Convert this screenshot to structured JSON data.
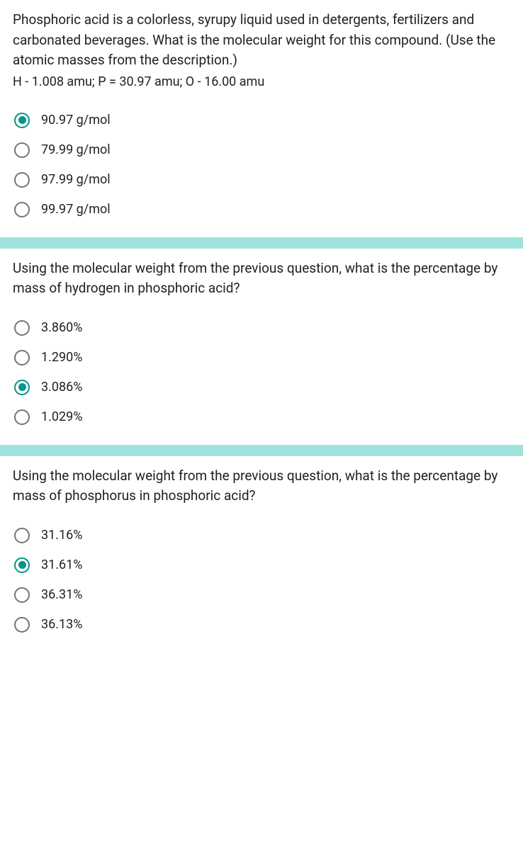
{
  "accent_color": "#009688",
  "radio_unselected_color": "#757575",
  "divider_color": "#a1e4dd",
  "text_color": "#212121",
  "questions": [
    {
      "prompt": "Phosphoric acid is a colorless, syrupy liquid used in detergents, fertilizers and carbonated beverages. What is the molecular weight for this compound. (Use the atomic masses from the description.)",
      "sub": "H - 1.008 amu; P = 30.97 amu; O - 16.00 amu",
      "selected": 0,
      "options": [
        "90.97 g/mol",
        "79.99 g/mol",
        "97.99 g/mol",
        "99.97 g/mol"
      ]
    },
    {
      "prompt": "Using the molecular weight from the previous question, what is the percentage by mass of hydrogen in phosphoric acid?",
      "sub": "",
      "selected": 2,
      "options": [
        "3.860%",
        "1.290%",
        "3.086%",
        "1.029%"
      ]
    },
    {
      "prompt": "Using the molecular weight from the previous question, what is the percentage by mass of phosphorus in phosphoric acid?",
      "sub": "",
      "selected": 1,
      "options": [
        "31.16%",
        "31.61%",
        "36.31%",
        "36.13%"
      ]
    }
  ]
}
